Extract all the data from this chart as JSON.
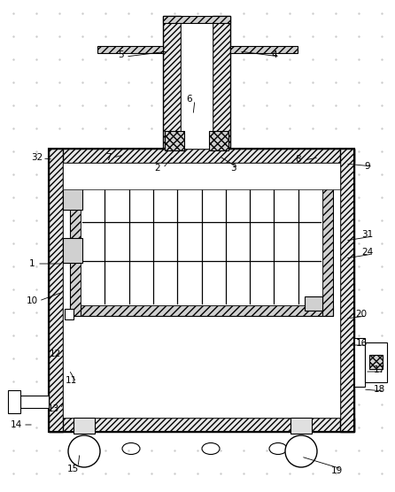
{
  "bg_color": "#ffffff",
  "line_color": "#000000",
  "fig_width": 4.46,
  "fig_height": 5.56,
  "dpi": 100,
  "dot_color": "#cccccc",
  "hatch_fc": "#e8e8e8",
  "hatch_fc2": "#d0d0d0"
}
